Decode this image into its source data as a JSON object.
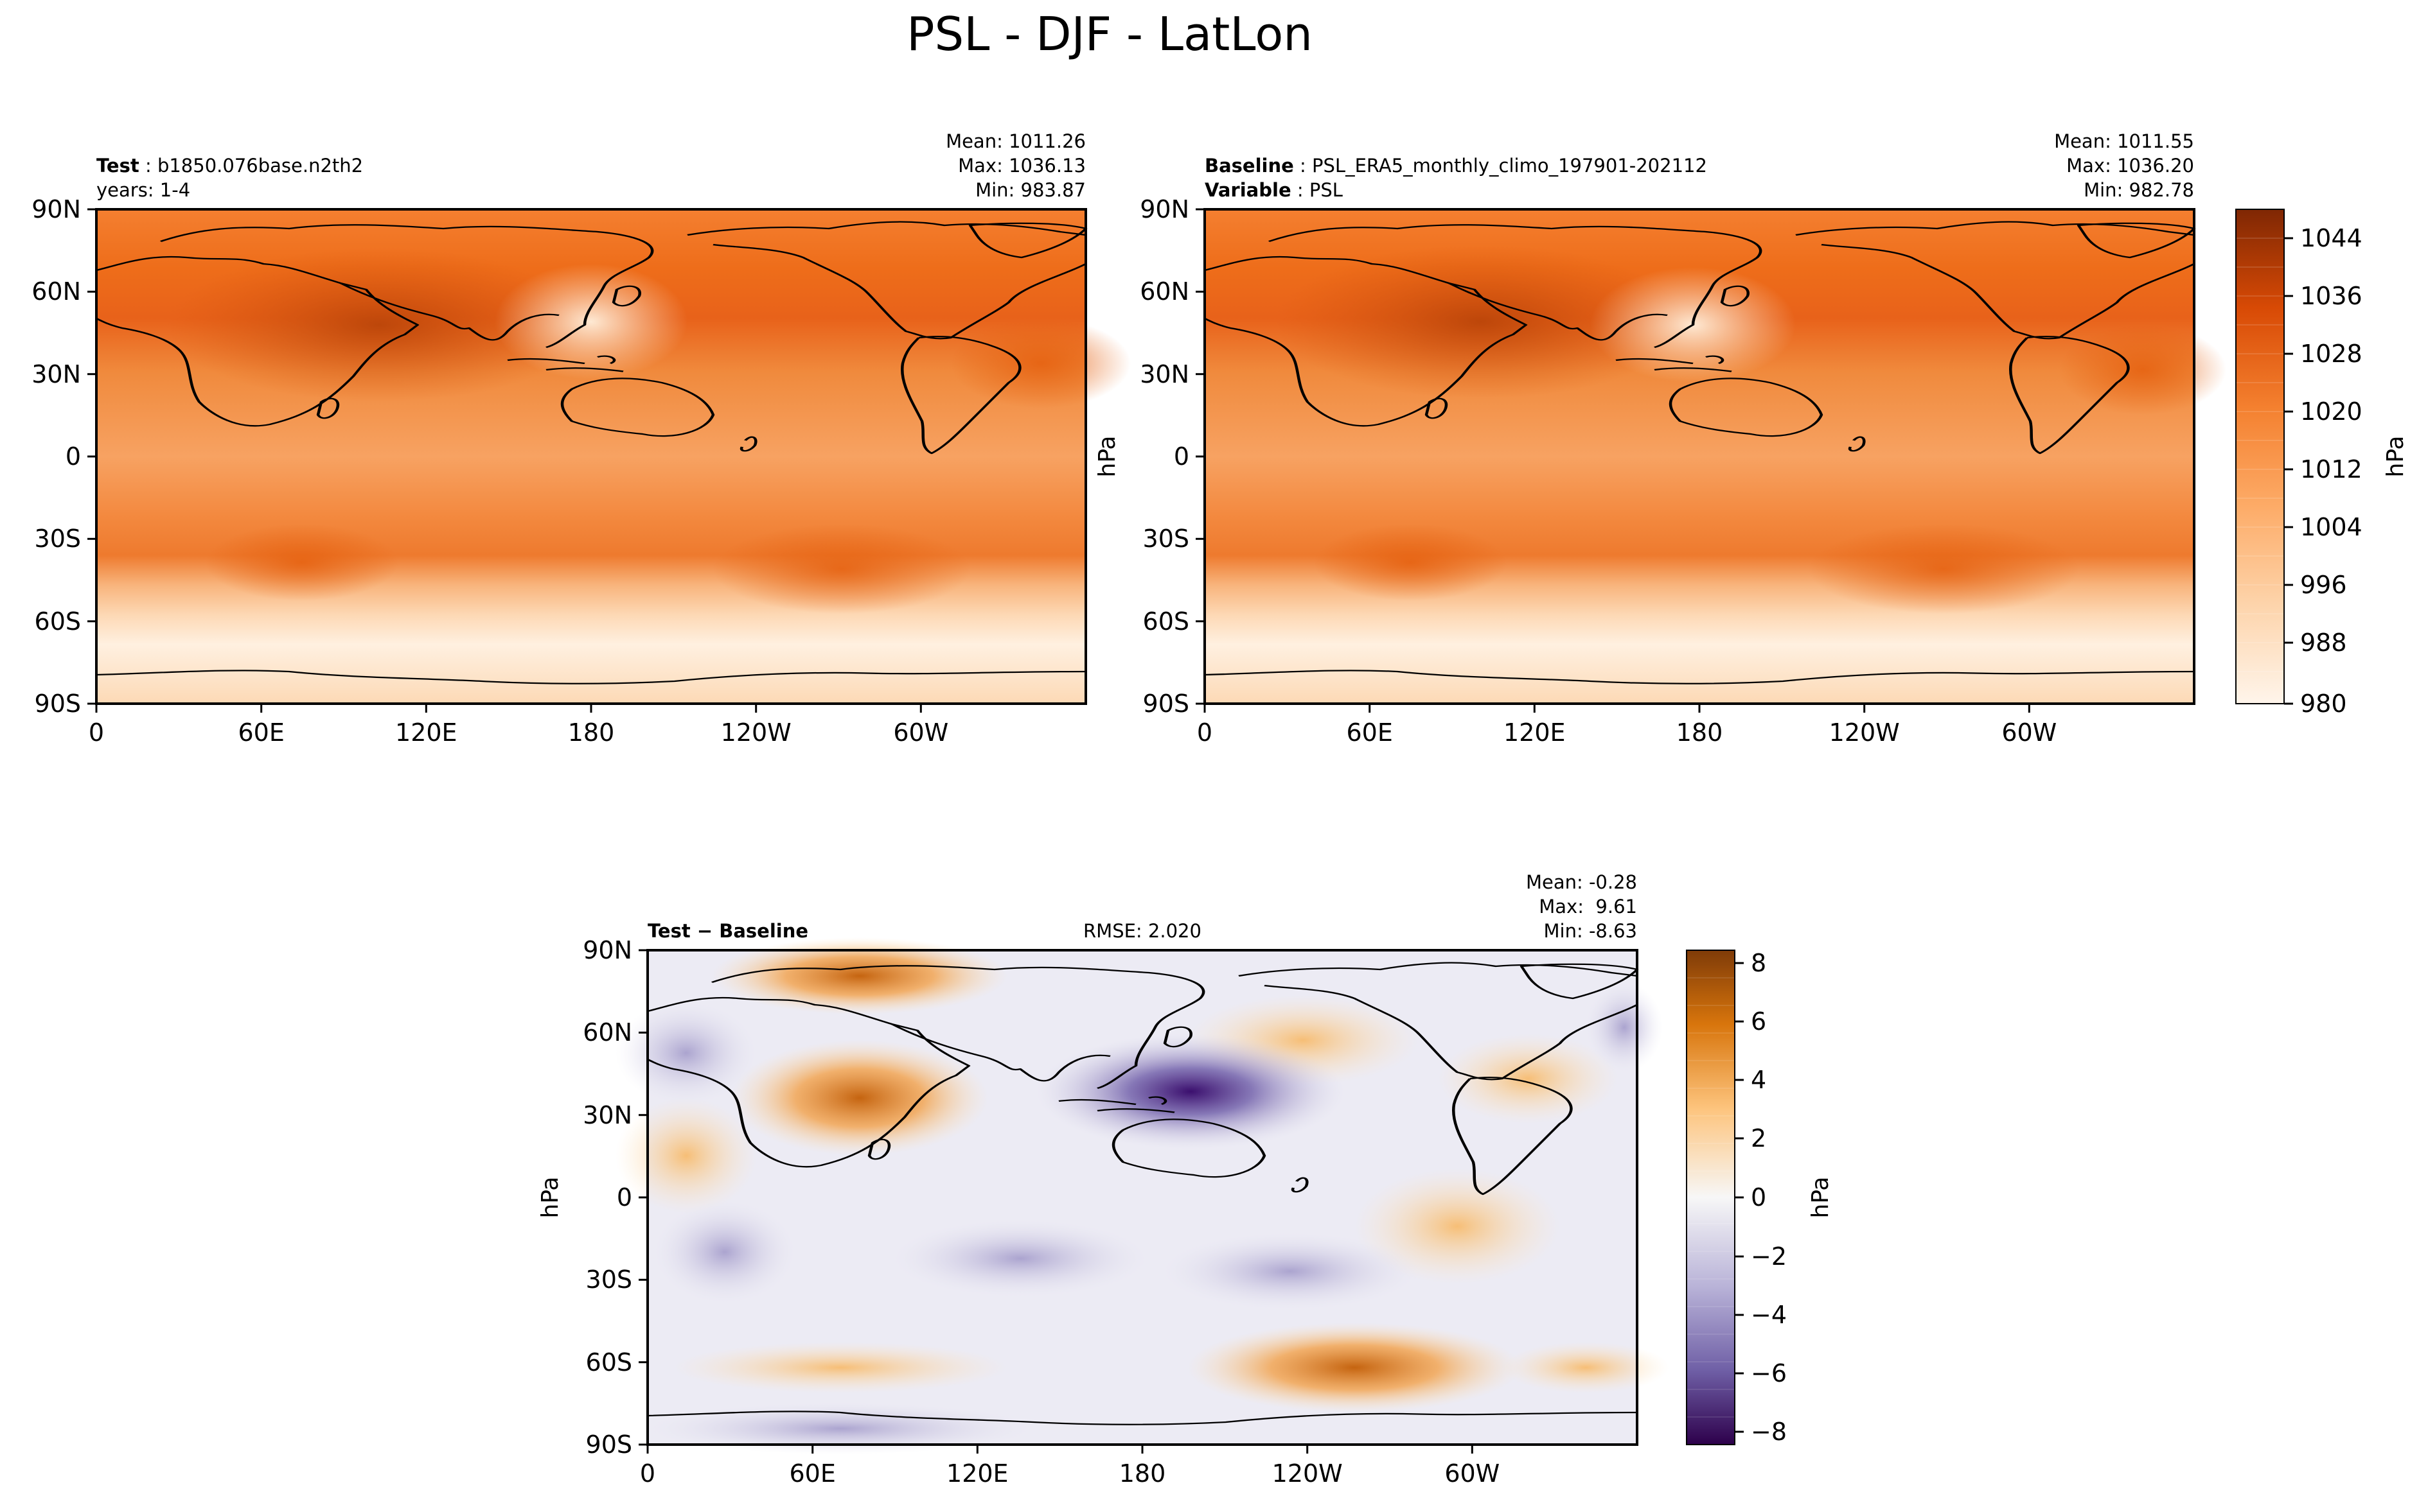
{
  "figure": {
    "title": "PSL - DJF - LatLon"
  },
  "panels": {
    "test": {
      "label_key": "Test",
      "label_value": "b1850.076base.n2th2",
      "sub": "years: 1-4",
      "stats": [
        "Mean: 1011.26",
        "Max: 1036.13",
        "Min: 983.87"
      ]
    },
    "baseline": {
      "label_key": "Baseline",
      "label_value": "PSL_ERA5_monthly_climo_197901-202112",
      "sub_key": "Variable",
      "sub_value": "PSL",
      "stats": [
        "Mean: 1011.55",
        "Max: 1036.20",
        "Min: 982.78"
      ],
      "ylabel": "hPa"
    },
    "diff": {
      "label": "Test − Baseline",
      "rmse": "RMSE: 2.020",
      "stats": [
        "Mean: -0.28",
        "Max:  9.61",
        "Min: -8.63"
      ],
      "ylabel": "hPa"
    }
  },
  "colorbars": {
    "main": {
      "label": "hPa",
      "ticks": [
        "1044",
        "1036",
        "1028",
        "1020",
        "1012",
        "1004",
        "996",
        "988",
        "980"
      ]
    },
    "diff": {
      "label": "hPa",
      "ticks": [
        "8",
        "6",
        "4",
        "2",
        "0",
        "−2",
        "−4",
        "−6",
        "−8"
      ]
    }
  },
  "chart_data": [
    {
      "type": "heatmap",
      "subtitle": "Test: b1850.076base.n2th2",
      "x_ticks": [
        "0",
        "60E",
        "120E",
        "180",
        "120W",
        "60W"
      ],
      "y_ticks": [
        "90N",
        "60N",
        "30N",
        "0",
        "30S",
        "60S",
        "90S"
      ],
      "xlim": [
        0,
        360
      ],
      "ylim": [
        -90,
        90
      ],
      "color_range": [
        980,
        1048
      ],
      "colormap": "Oranges",
      "stats": {
        "mean": 1011.26,
        "max": 1036.13,
        "min": 983.87
      }
    },
    {
      "type": "heatmap",
      "subtitle": "Baseline: PSL_ERA5_monthly_climo_197901-202112",
      "x_ticks": [
        "0",
        "60E",
        "120E",
        "180",
        "120W",
        "60W"
      ],
      "y_ticks": [
        "90N",
        "60N",
        "30N",
        "0",
        "30S",
        "60S",
        "90S"
      ],
      "xlim": [
        0,
        360
      ],
      "ylim": [
        -90,
        90
      ],
      "color_range": [
        980,
        1048
      ],
      "colormap": "Oranges",
      "stats": {
        "mean": 1011.55,
        "max": 1036.2,
        "min": 982.78
      }
    },
    {
      "type": "heatmap",
      "subtitle": "Test − Baseline",
      "x_ticks": [
        "0",
        "60E",
        "120E",
        "180",
        "120W",
        "60W"
      ],
      "y_ticks": [
        "90N",
        "60N",
        "30N",
        "0",
        "30S",
        "60S",
        "90S"
      ],
      "xlim": [
        0,
        360
      ],
      "ylim": [
        -90,
        90
      ],
      "color_range": [
        -9,
        9
      ],
      "colormap": "PuOr_r",
      "rmse": 2.02,
      "stats": {
        "mean": -0.28,
        "max": 9.61,
        "min": -8.63
      }
    }
  ],
  "colors": {
    "orange_dark": "#7f2704",
    "orange_mid": "#ee6d1a",
    "orange_light": "#fff5eb",
    "purple_dark": "#2d004b",
    "brown_dark": "#7f3b08",
    "neutral": "#f7f7f7"
  }
}
